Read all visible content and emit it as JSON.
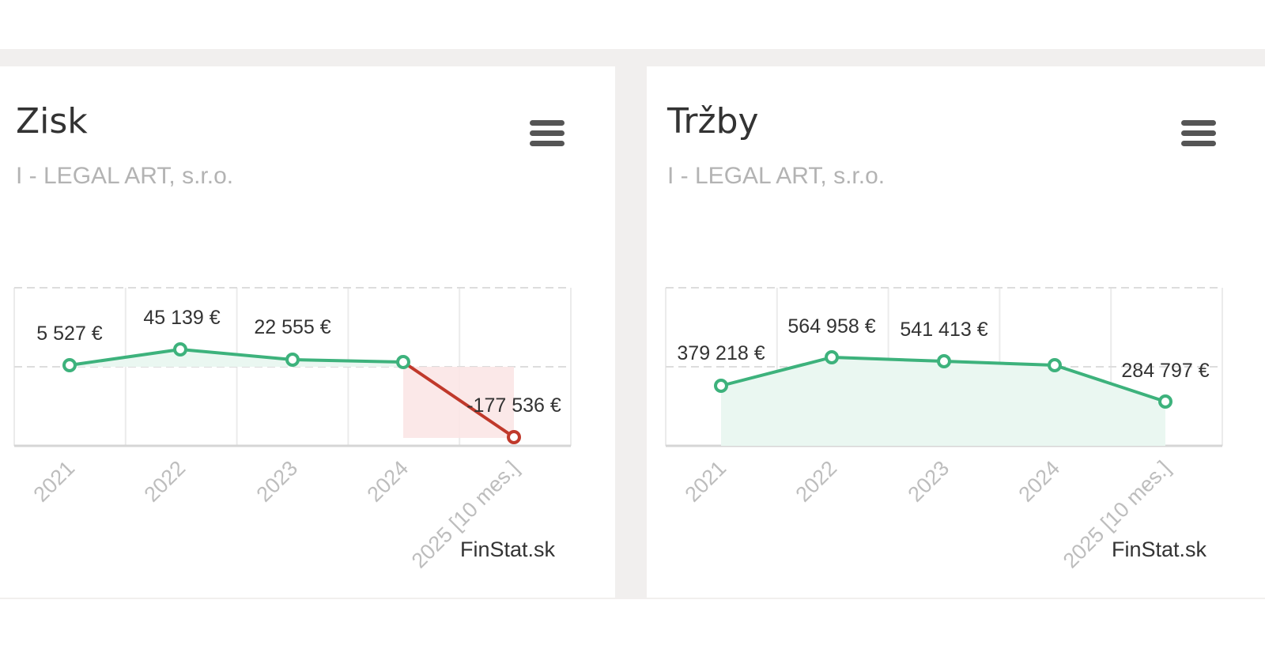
{
  "charts": [
    {
      "id": "zisk",
      "title": "Zisk",
      "subtitle": "I - LEGAL ART, s.r.o.",
      "credit": "FinStat.sk",
      "menu_icon": "hamburger-menu-icon"
    },
    {
      "id": "trzby",
      "title": "Tržby",
      "subtitle": "I - LEGAL ART, s.r.o.",
      "credit": "FinStat.sk",
      "menu_icon": "hamburger-menu-icon"
    }
  ],
  "chart_data": [
    {
      "type": "line",
      "title": "Zisk",
      "subtitle": "I - LEGAL ART, s.r.o.",
      "categories": [
        "2021",
        "2022",
        "2023",
        "2024",
        "2025 [10 mes.]"
      ],
      "values": [
        5527,
        45139,
        22555,
        15000,
        -177536
      ],
      "data_labels": [
        "5 527 €",
        "45 139 €",
        "22 555 €",
        "",
        "-177 536 €"
      ],
      "ylim": [
        -200000,
        200000
      ],
      "grid": true,
      "colors": {
        "positive": "#3db27c",
        "negative": "#c0392b",
        "positive_fill": "#eaf7f1",
        "negative_fill": "#fbe5e5"
      }
    },
    {
      "type": "line",
      "title": "Tržby",
      "subtitle": "I - LEGAL ART, s.r.o.",
      "categories": [
        "2021",
        "2022",
        "2023",
        "2024",
        "2025 [10 mes.]"
      ],
      "values": [
        379218,
        564958,
        541413,
        520000,
        284797
      ],
      "data_labels": [
        "379 218 €",
        "564 958 €",
        "541 413 €",
        "",
        "284 797 €"
      ],
      "ylim": [
        0,
        1000000
      ],
      "grid": true,
      "colors": {
        "positive": "#3db27c",
        "positive_fill": "#eaf7f1"
      }
    }
  ]
}
